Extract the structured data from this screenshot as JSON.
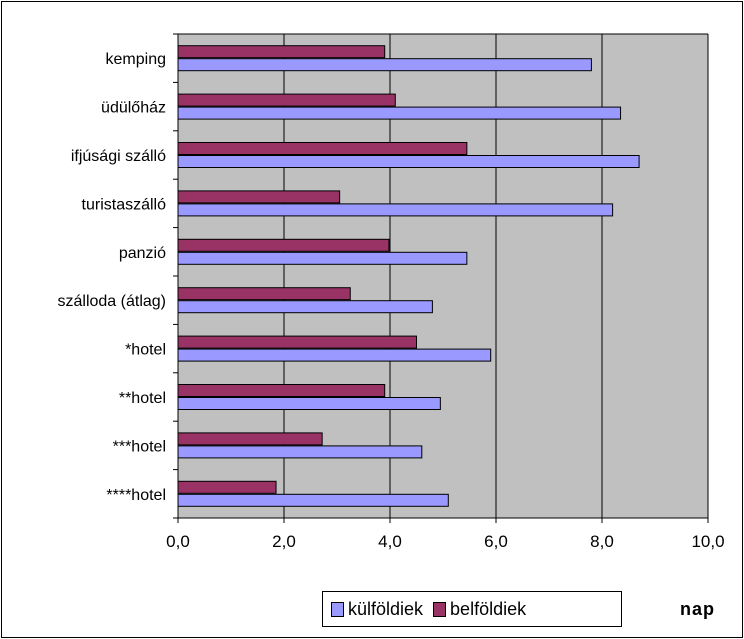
{
  "chart_data": {
    "type": "bar",
    "orientation": "horizontal",
    "categories": [
      "kemping",
      "üdülőház",
      "ifjúsági szálló",
      "turistaszálló",
      "panzió",
      "szálloda (átlag)",
      "*hotel",
      "**hotel",
      "***hotel",
      "****hotel"
    ],
    "series": [
      {
        "name": "belföldiek",
        "color": "#993366",
        "values": [
          3.9,
          4.1,
          5.45,
          3.05,
          3.98,
          3.25,
          4.5,
          3.9,
          2.72,
          1.85
        ]
      },
      {
        "name": "külföldiek",
        "color": "#9999ff",
        "values": [
          7.8,
          8.35,
          8.7,
          8.2,
          5.45,
          4.8,
          5.9,
          4.95,
          4.6,
          5.1
        ]
      }
    ],
    "xlim": [
      0,
      10
    ],
    "xticks": [
      "0,0",
      "2,0",
      "4,0",
      "6,0",
      "8,0",
      "10,0"
    ],
    "xtick_values": [
      0,
      2,
      4,
      6,
      8,
      10
    ],
    "grid": true,
    "plot_background": "#c0c0c0",
    "legend": [
      "külföldiek",
      "belföldiek"
    ],
    "legend_position": "bottom",
    "unit_label": "nap"
  }
}
